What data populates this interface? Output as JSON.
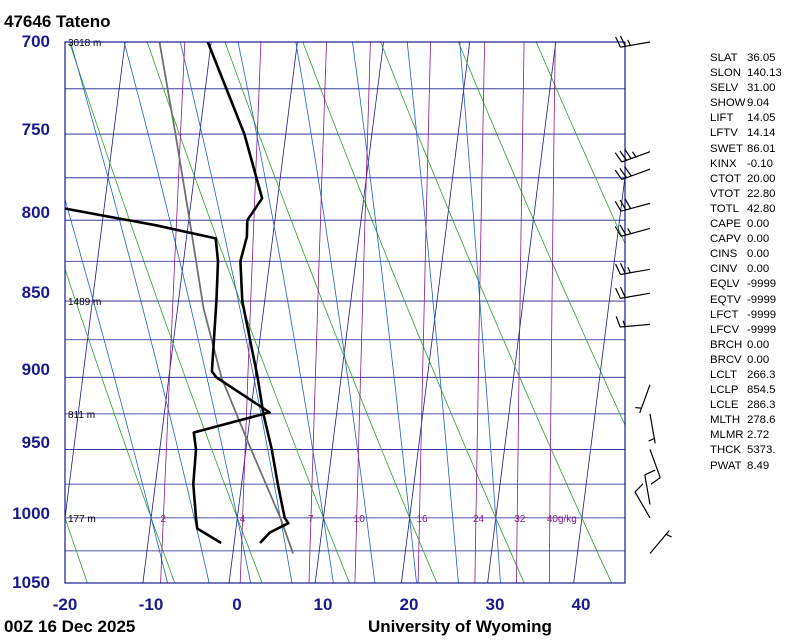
{
  "header": {
    "station": "47646  Tateno",
    "timestamp": "00Z 16 Dec 2025",
    "source": "University of Wyoming"
  },
  "indices": [
    {
      "key": "SLAT",
      "value": "36.05"
    },
    {
      "key": "SLON",
      "value": "140.13"
    },
    {
      "key": "SELV",
      "value": "31.00"
    },
    {
      "key": "SHOW",
      "value": "9.04"
    },
    {
      "key": "LIFT",
      "value": "14.05"
    },
    {
      "key": "LFTV",
      "value": "14.14"
    },
    {
      "key": "SWET",
      "value": "86.01"
    },
    {
      "key": "KINX",
      "value": "-0.10"
    },
    {
      "key": "CTOT",
      "value": "20.00"
    },
    {
      "key": "VTOT",
      "value": "22.80"
    },
    {
      "key": "TOTL",
      "value": "42.80"
    },
    {
      "key": "CAPE",
      "value": "0.00"
    },
    {
      "key": "CAPV",
      "value": "0.00"
    },
    {
      "key": "CINS",
      "value": "0.00"
    },
    {
      "key": "CINV",
      "value": "0.00"
    },
    {
      "key": "EQLV",
      "value": "-9999"
    },
    {
      "key": "EQTV",
      "value": "-9999"
    },
    {
      "key": "LFCT",
      "value": "-9999"
    },
    {
      "key": "LFCV",
      "value": "-9999"
    },
    {
      "key": "BRCH",
      "value": "0.00"
    },
    {
      "key": "BRCV",
      "value": "0.00"
    },
    {
      "key": "LCLT",
      "value": "266.3"
    },
    {
      "key": "LCLP",
      "value": "854.5"
    },
    {
      "key": "LCLE",
      "value": "286.3"
    },
    {
      "key": "MLTH",
      "value": "278.6"
    },
    {
      "key": "MLMR",
      "value": "2.72"
    },
    {
      "key": "THCK",
      "value": "5373."
    },
    {
      "key": "PWAT",
      "value": "8.49"
    }
  ],
  "colors": {
    "frame": "#1a1a8c",
    "isotherm": "#1a1a8c",
    "dry_adiabat": "#2aa02a",
    "moist_adiabat": "#1e5fc8",
    "mixing_ratio": "#8c1a8c",
    "temperature": "#000000",
    "dewpoint": "#000000",
    "parcel": "#707070",
    "barb": "#000000"
  },
  "chart_data": {
    "type": "skew-t",
    "x_axis": {
      "ticks": [
        "-20",
        "-10",
        "0",
        "10",
        "20",
        "30",
        "40"
      ],
      "range": [
        -20,
        45
      ]
    },
    "y_axis": {
      "ticks": [
        "700",
        "750",
        "800",
        "850",
        "900",
        "950",
        "1000",
        "1050"
      ],
      "range": [
        700,
        1050
      ],
      "scale": "log"
    },
    "skew_t_per_log_decade": 45,
    "height_labels": [
      {
        "p": 700,
        "label": "3018 m"
      },
      {
        "p": 850,
        "label": "1489 m"
      },
      {
        "p": 925,
        "label": "811 m"
      },
      {
        "p": 1000,
        "label": "177 m"
      }
    ],
    "mixing_ratio_labels": {
      "p": 1000,
      "values": [
        2,
        4,
        7,
        10,
        16,
        24,
        32,
        40
      ],
      "labels": [
        "2",
        "4",
        "7",
        "10",
        "16",
        "24",
        "32",
        "40g/kg"
      ]
    },
    "dry_adiabats_theta_c": [
      -20,
      -10,
      0,
      10,
      20,
      30,
      40,
      50,
      60
    ],
    "moist_adiabats_wbt_c": [
      -10,
      -5,
      0,
      5,
      10,
      15,
      20,
      25,
      30
    ],
    "temperature": [
      {
        "p": 1019,
        "t": 3.0
      },
      {
        "p": 1011,
        "t": 4.0
      },
      {
        "p": 1004,
        "t": 6.0
      },
      {
        "p": 1000,
        "t": 5.5
      },
      {
        "p": 975,
        "t": 4.2
      },
      {
        "p": 950,
        "t": 3.0
      },
      {
        "p": 925,
        "t": 1.5
      },
      {
        "p": 900,
        "t": 0.3
      },
      {
        "p": 850,
        "t": -2.6
      },
      {
        "p": 825,
        "t": -3.4
      },
      {
        "p": 810,
        "t": -3.0
      },
      {
        "p": 800,
        "t": -3.2
      },
      {
        "p": 787,
        "t": -1.8
      },
      {
        "p": 750,
        "t": -4.8
      },
      {
        "p": 700,
        "t": -10.4
      }
    ],
    "dewpoint": [
      {
        "p": 1019,
        "t": -1.5
      },
      {
        "p": 1008,
        "t": -4.5
      },
      {
        "p": 1000,
        "t": -4.8
      },
      {
        "p": 975,
        "t": -5.6
      },
      {
        "p": 950,
        "t": -5.8
      },
      {
        "p": 938,
        "t": -6.3
      },
      {
        "p": 924,
        "t": 2.2
      },
      {
        "p": 900,
        "t": -4.5
      },
      {
        "p": 896,
        "t": -5.1
      },
      {
        "p": 850,
        "t": -5.6
      },
      {
        "p": 825,
        "t": -6.0
      },
      {
        "p": 811,
        "t": -6.6
      },
      {
        "p": 803,
        "t": -13.8
      },
      {
        "p": 793,
        "t": -24.6
      },
      {
        "p": 790,
        "t": -30.8
      }
    ],
    "parcel": [
      {
        "p": 1027,
        "t": 7.0
      },
      {
        "p": 1000,
        "t": 5.0
      },
      {
        "p": 950,
        "t": 0.6
      },
      {
        "p": 900,
        "t": -3.9
      },
      {
        "p": 854.5,
        "t": -7.0
      },
      {
        "p": 800,
        "t": -9.9
      },
      {
        "p": 750,
        "t": -12.8
      },
      {
        "p": 700,
        "t": -16.0
      }
    ],
    "wind_barbs": [
      {
        "p": 700,
        "dir": 260,
        "spd": 25
      },
      {
        "p": 760,
        "dir": 250,
        "spd": 35
      },
      {
        "p": 770,
        "dir": 250,
        "spd": 30
      },
      {
        "p": 790,
        "dir": 255,
        "spd": 30
      },
      {
        "p": 805,
        "dir": 255,
        "spd": 25
      },
      {
        "p": 830,
        "dir": 260,
        "spd": 25
      },
      {
        "p": 845,
        "dir": 260,
        "spd": 20
      },
      {
        "p": 865,
        "dir": 265,
        "spd": 15
      },
      {
        "p": 905,
        "dir": 200,
        "spd": 5
      },
      {
        "p": 925,
        "dir": 170,
        "spd": 5
      },
      {
        "p": 950,
        "dir": 160,
        "spd": 10
      },
      {
        "p": 990,
        "dir": 350,
        "spd": 10
      },
      {
        "p": 1000,
        "dir": 330,
        "spd": 10
      },
      {
        "p": 1027,
        "dir": 40,
        "spd": 5
      }
    ]
  }
}
